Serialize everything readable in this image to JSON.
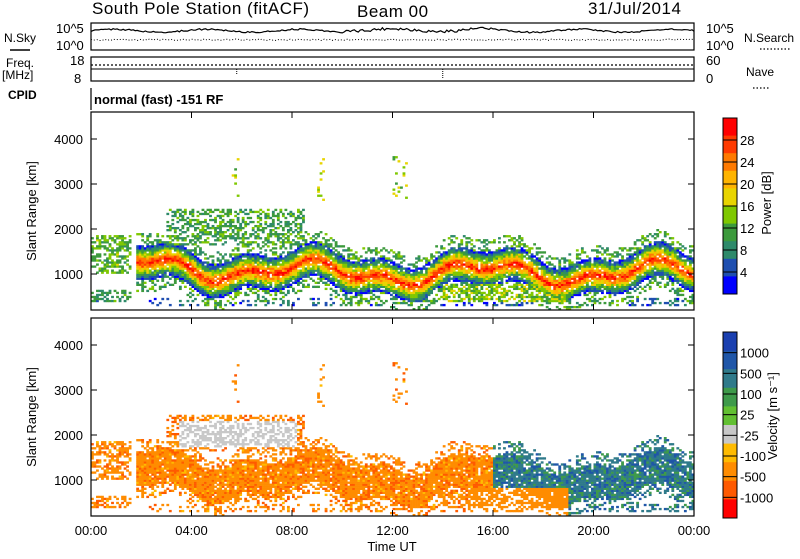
{
  "header": {
    "station": "South Pole Station (fitACF)",
    "beam": "Beam 00",
    "date": "31/Jul/2014"
  },
  "top_panel": {
    "nsky_label": "N.Sky",
    "nsearch_label": "N.Search",
    "noise_ticks": [
      "10^5",
      "10^0"
    ],
    "freq_label": "Freq.",
    "freq_unit": "[MHz]",
    "freq_ticks": [
      "18",
      "8"
    ],
    "nave_label": "Nave",
    "nave_ticks": [
      "60",
      "0"
    ],
    "cpid_label": "CPID",
    "cpid_text": "normal (fast) -151 RF"
  },
  "x_axis": {
    "ticks": [
      "00:00",
      "04:00",
      "08:00",
      "12:00",
      "16:00",
      "20:00",
      "00:00"
    ],
    "label": "Time UT"
  },
  "chart_data": [
    {
      "type": "heatmap",
      "panel": "power",
      "x_range_hours": [
        0,
        24
      ],
      "y_range_km": [
        200,
        4600
      ],
      "ylabel": "Slant Range [km]",
      "yticks": [
        "1000",
        "2000",
        "3000",
        "4000"
      ],
      "colorbar": {
        "label": "Power [dB]",
        "ticks": [
          "28",
          "24",
          "20",
          "16",
          "12",
          "8",
          "4"
        ],
        "colors": [
          "#ff0000",
          "#ff3a00",
          "#ff7a00",
          "#ffb400",
          "#e8d400",
          "#7fc800",
          "#3c9a3c",
          "#2e8a6a",
          "#1f4fb0",
          "#0000ff"
        ]
      }
    },
    {
      "type": "heatmap",
      "panel": "velocity",
      "x_range_hours": [
        0,
        24
      ],
      "y_range_km": [
        200,
        4600
      ],
      "ylabel": "Slant Range [km]",
      "yticks": [
        "1000",
        "2000",
        "3000",
        "4000"
      ],
      "colorbar": {
        "label": "Velocity [m s⁻¹]",
        "ticks": [
          "1000",
          "500",
          "100",
          "25",
          "-25",
          "-100",
          "-500",
          "-1000"
        ],
        "colors": [
          "#1a3fb0",
          "#1f56a8",
          "#2f7a8a",
          "#3e9a4a",
          "#62c032",
          "#c8c8c8",
          "#ffbb00",
          "#ff8c00",
          "#ff5a00",
          "#ff0000"
        ]
      }
    }
  ]
}
